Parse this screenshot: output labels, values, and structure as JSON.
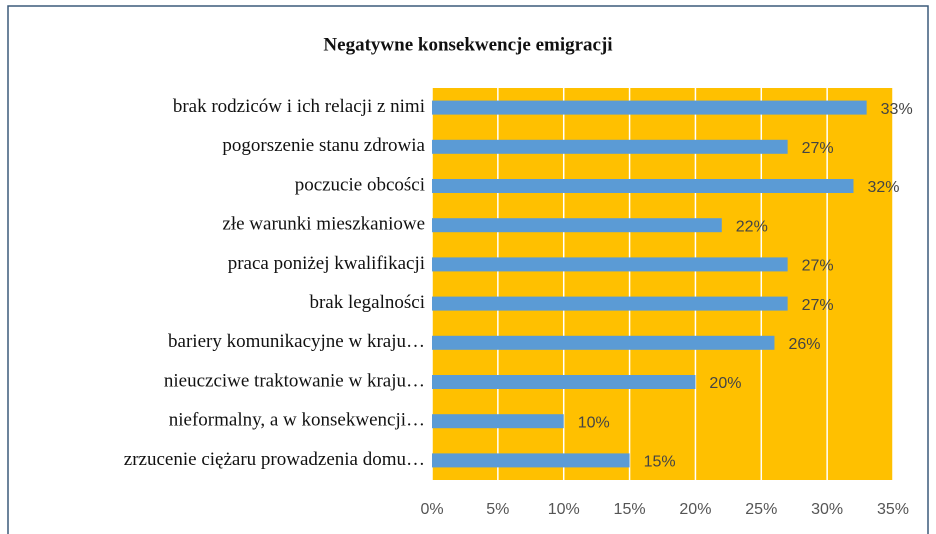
{
  "chart_data": {
    "type": "bar",
    "orientation": "horizontal",
    "title": "Negatywne konsekwencje emigracji",
    "categories": [
      "brak rodziców i ich relacji z nimi",
      "pogorszenie stanu zdrowia",
      "poczucie obcości",
      "złe warunki mieszkaniowe",
      "praca poniżej kwalifikacji",
      "brak legalności",
      "bariery komunikacyjne w kraju…",
      "nieuczciwe traktowanie w kraju…",
      "nieformalny, a w konsekwencji…",
      "zrzucenie ciężaru prowadzenia domu…"
    ],
    "values": [
      33,
      27,
      32,
      22,
      27,
      27,
      26,
      20,
      10,
      15
    ],
    "value_labels": [
      "33%",
      "27%",
      "32%",
      "22%",
      "27%",
      "27%",
      "26%",
      "20%",
      "10%",
      "15%"
    ],
    "color": "#5b9bd5",
    "plot_background": "#ffc000",
    "xlim": [
      0,
      35
    ],
    "xticks": [
      {
        "value": 0,
        "label": "0%"
      },
      {
        "value": 5,
        "label": "5%"
      },
      {
        "value": 10,
        "label": "10%"
      },
      {
        "value": 15,
        "label": "15%"
      },
      {
        "value": 20,
        "label": "20%"
      },
      {
        "value": 25,
        "label": "25%"
      },
      {
        "value": 30,
        "label": "30%"
      },
      {
        "value": 35,
        "label": "35%"
      }
    ],
    "grid": true
  }
}
